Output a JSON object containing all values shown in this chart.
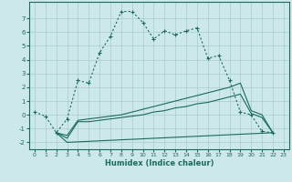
{
  "xlabel": "Humidex (Indice chaleur)",
  "bg_color": "#cce8e8",
  "grid_color": "#aacccc",
  "line_color": "#1a6b5a",
  "xlim": [
    -0.5,
    23.5
  ],
  "ylim": [
    -2.5,
    8.2
  ],
  "yticks": [
    -2,
    -1,
    0,
    1,
    2,
    3,
    4,
    5,
    6,
    7
  ],
  "xticks": [
    0,
    1,
    2,
    3,
    4,
    5,
    6,
    7,
    8,
    9,
    10,
    11,
    12,
    13,
    14,
    15,
    16,
    17,
    18,
    19,
    20,
    21,
    22,
    23
  ],
  "series1_x": [
    0,
    1,
    2,
    3,
    4,
    5,
    6,
    7,
    8,
    9,
    10,
    11,
    12,
    13,
    14,
    15,
    16,
    17,
    18,
    19,
    20,
    21,
    22
  ],
  "series1_y": [
    0.2,
    -0.1,
    -1.3,
    -0.3,
    2.5,
    2.3,
    4.5,
    5.7,
    7.5,
    7.5,
    6.7,
    5.5,
    6.1,
    5.8,
    6.1,
    6.3,
    4.1,
    4.3,
    2.5,
    0.2,
    0.0,
    -1.2,
    -1.3
  ],
  "series2_x": [
    2,
    3,
    4,
    5,
    6,
    7,
    8,
    9,
    10,
    11,
    12,
    13,
    14,
    15,
    16,
    17,
    18,
    19,
    20,
    21,
    22
  ],
  "series2_y": [
    -1.3,
    -1.5,
    -0.4,
    -0.3,
    -0.2,
    -0.1,
    0.0,
    0.2,
    0.4,
    0.6,
    0.8,
    1.0,
    1.2,
    1.4,
    1.6,
    1.8,
    2.0,
    2.3,
    0.3,
    0.0,
    -1.3
  ],
  "series3_x": [
    2,
    3,
    4,
    5,
    6,
    7,
    8,
    9,
    10,
    11,
    12,
    13,
    14,
    15,
    16,
    17,
    18,
    19,
    20,
    21,
    22
  ],
  "series3_y": [
    -1.3,
    -1.7,
    -0.5,
    -0.5,
    -0.4,
    -0.3,
    -0.2,
    -0.1,
    0.0,
    0.2,
    0.3,
    0.5,
    0.6,
    0.8,
    0.9,
    1.1,
    1.3,
    1.5,
    0.1,
    -0.2,
    -1.3
  ],
  "series4_x": [
    2,
    3,
    22
  ],
  "series4_y": [
    -1.3,
    -2.0,
    -1.3
  ]
}
